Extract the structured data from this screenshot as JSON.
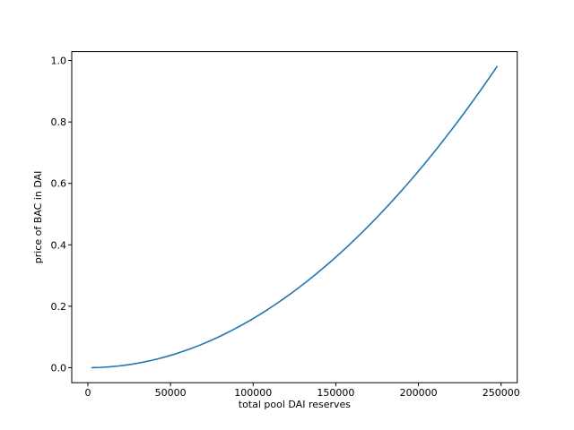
{
  "figure": {
    "background_color": "#ffffff",
    "plot_background_color": "#ffffff",
    "spine_color": "#000000",
    "tick_color": "#000000",
    "text_color": "#000000"
  },
  "chart_data": {
    "type": "line",
    "title": "",
    "xlabel": "total pool DAI reserves",
    "ylabel": "price of BAC in DAI",
    "grid": false,
    "legend": "none",
    "line_color": "#1f77b4",
    "xlim": [
      -9750,
      259750
    ],
    "ylim": [
      -0.0489,
      1.0291
    ],
    "x_ticks": {
      "values": [
        0,
        50000,
        100000,
        150000,
        200000,
        250000
      ],
      "labels": [
        "0",
        "50000",
        "100000",
        "150000",
        "200000",
        "250000"
      ]
    },
    "y_ticks": {
      "values": [
        0.0,
        0.2,
        0.4,
        0.6,
        0.8,
        1.0
      ],
      "labels": [
        "0.0",
        "0.2",
        "0.4",
        "0.6",
        "0.8",
        "1.0"
      ]
    },
    "series": [
      {
        "name": "price of BAC in DAI",
        "x": [
          2500,
          7500,
          12500,
          17500,
          22500,
          27500,
          32500,
          37500,
          42500,
          47500,
          52500,
          57500,
          62500,
          67500,
          72500,
          77500,
          82500,
          87500,
          92500,
          97500,
          102500,
          107500,
          112500,
          117500,
          122500,
          127500,
          132500,
          137500,
          142500,
          147500,
          152500,
          157500,
          162500,
          167500,
          172500,
          177500,
          182500,
          187500,
          192500,
          197500,
          202500,
          207500,
          212500,
          217500,
          222500,
          227500,
          232500,
          237500,
          242500,
          247500
        ],
        "y": [
          0.0001,
          0.0009,
          0.0025,
          0.0049,
          0.0081,
          0.0121,
          0.0169,
          0.0225,
          0.0289,
          0.0361,
          0.0441,
          0.0529,
          0.0625,
          0.0729,
          0.0841,
          0.0961,
          0.1089,
          0.1225,
          0.1369,
          0.1521,
          0.1681,
          0.1849,
          0.2025,
          0.2209,
          0.2401,
          0.2601,
          0.2809,
          0.3025,
          0.3249,
          0.3481,
          0.3721,
          0.3969,
          0.4225,
          0.4489,
          0.4761,
          0.5041,
          0.5329,
          0.5625,
          0.5929,
          0.6241,
          0.6561,
          0.6889,
          0.7225,
          0.7569,
          0.7921,
          0.8281,
          0.8649,
          0.9025,
          0.9409,
          0.9801
        ]
      }
    ]
  }
}
